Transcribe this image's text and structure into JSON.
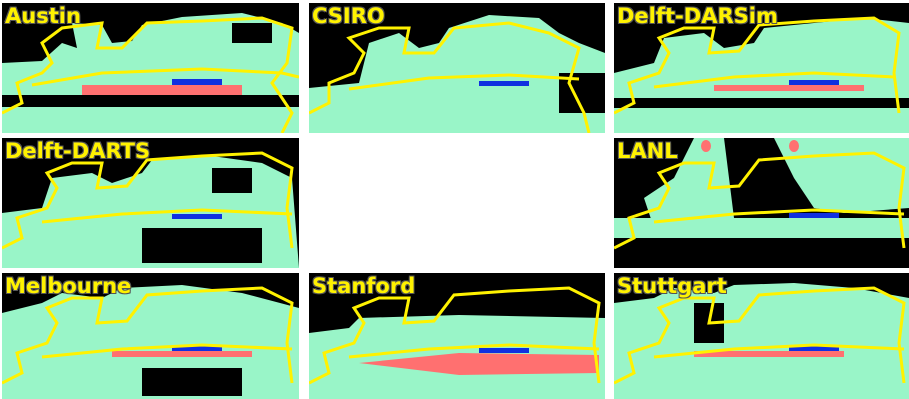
{
  "figure": {
    "colors": {
      "background": "#000000",
      "gas_region": "#99f5c8",
      "high_saturation": "#ff7070",
      "injection": "#1030e0",
      "contour": "#fff200",
      "label": "#fff200"
    },
    "panels": [
      {
        "label": "Austin"
      },
      {
        "label": "CSIRO"
      },
      {
        "label": "Delft-DARSim"
      },
      {
        "label": "Delft-DARTS"
      },
      {
        "label": ""
      },
      {
        "label": "LANL"
      },
      {
        "label": "Melbourne"
      },
      {
        "label": "Stanford"
      },
      {
        "label": "Stuttgart"
      }
    ]
  }
}
